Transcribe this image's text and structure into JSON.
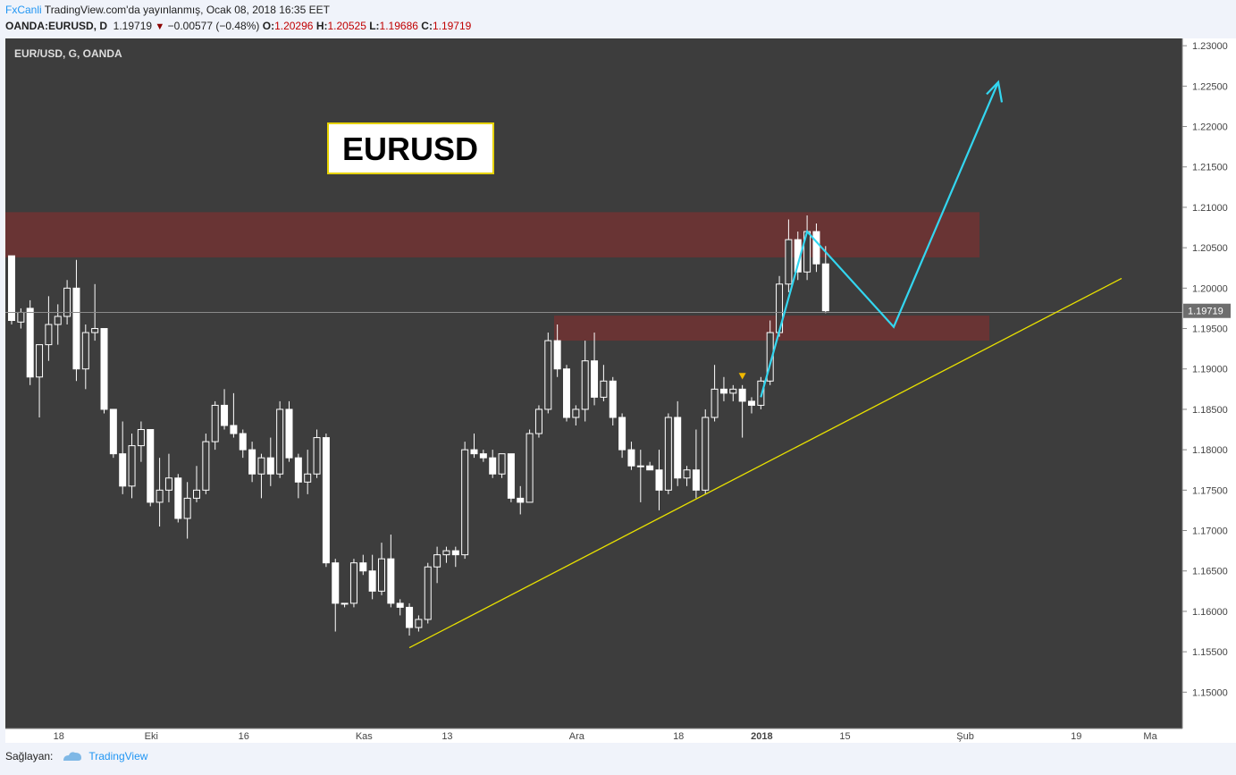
{
  "header": {
    "brand": "FxCanli",
    "published": " TradingView.com'da yayınlanmış, Ocak 08, 2018 16:35 EET",
    "symbol": "OANDA:EURUSD, D",
    "last": "1.19719",
    "change": "−0.00577 (−0.48%)",
    "o_label": "O:",
    "o_val": "1.20296",
    "h_label": "H:",
    "h_val": "1.20525",
    "l_label": "L:",
    "l_val": "1.19686",
    "c_label": "C:",
    "c_val": "1.19719"
  },
  "footer": {
    "provider_label": "Sağlayan:",
    "provider_name": "TradingView"
  },
  "chart_data": {
    "type": "candlestick",
    "title": "EUR/USD, G, OANDA",
    "annotation": "EURUSD",
    "last_price_label": "1.19719",
    "ylim": [
      1.1455,
      1.2309
    ],
    "y_ticks": [
      "1.23000",
      "1.22500",
      "1.22000",
      "1.21500",
      "1.21000",
      "1.20500",
      "1.20000",
      "1.19500",
      "1.19000",
      "1.18500",
      "1.18000",
      "1.17500",
      "1.17000",
      "1.16500",
      "1.16000",
      "1.15500",
      "1.15000"
    ],
    "x_ticks": [
      {
        "label": "18",
        "idx": 5
      },
      {
        "label": "Eki",
        "idx": 15
      },
      {
        "label": "16",
        "idx": 25
      },
      {
        "label": "Kas",
        "idx": 38
      },
      {
        "label": "13",
        "idx": 47
      },
      {
        "label": "Ara",
        "idx": 61
      },
      {
        "label": "18",
        "idx": 72
      },
      {
        "label": "2018",
        "idx": 81
      },
      {
        "label": "15",
        "idx": 90
      },
      {
        "label": "Şub",
        "idx": 103
      },
      {
        "label": "19",
        "idx": 115
      },
      {
        "label": "Ma",
        "idx": 123
      }
    ],
    "candles": [
      [
        1.204,
        1.204,
        1.1955,
        1.196
      ],
      [
        1.1958,
        1.1975,
        1.195,
        1.197
      ],
      [
        1.1975,
        1.1985,
        1.188,
        1.189
      ],
      [
        1.189,
        1.193,
        1.184,
        1.193
      ],
      [
        1.193,
        1.199,
        1.191,
        1.1955
      ],
      [
        1.1955,
        1.198,
        1.193,
        1.1965
      ],
      [
        1.1965,
        1.201,
        1.1955,
        1.2
      ],
      [
        1.2,
        1.2035,
        1.1885,
        1.19
      ],
      [
        1.19,
        1.1955,
        1.1875,
        1.1945
      ],
      [
        1.1945,
        1.2005,
        1.1935,
        1.195
      ],
      [
        1.195,
        1.195,
        1.1845,
        1.185
      ],
      [
        1.185,
        1.185,
        1.179,
        1.1795
      ],
      [
        1.1795,
        1.1835,
        1.1745,
        1.1755
      ],
      [
        1.1755,
        1.182,
        1.174,
        1.1805
      ],
      [
        1.1805,
        1.1835,
        1.1785,
        1.1825
      ],
      [
        1.1825,
        1.1825,
        1.173,
        1.1735
      ],
      [
        1.1735,
        1.179,
        1.1705,
        1.175
      ],
      [
        1.175,
        1.1795,
        1.1735,
        1.1765
      ],
      [
        1.1765,
        1.177,
        1.171,
        1.1715
      ],
      [
        1.1715,
        1.176,
        1.169,
        1.174
      ],
      [
        1.174,
        1.178,
        1.1735,
        1.175
      ],
      [
        1.175,
        1.182,
        1.1745,
        1.181
      ],
      [
        1.181,
        1.186,
        1.18,
        1.1855
      ],
      [
        1.1855,
        1.1875,
        1.1825,
        1.183
      ],
      [
        1.183,
        1.187,
        1.1815,
        1.182
      ],
      [
        1.182,
        1.1825,
        1.179,
        1.18
      ],
      [
        1.18,
        1.181,
        1.176,
        1.177
      ],
      [
        1.177,
        1.1795,
        1.174,
        1.179
      ],
      [
        1.179,
        1.1815,
        1.1755,
        1.177
      ],
      [
        1.177,
        1.186,
        1.1765,
        1.185
      ],
      [
        1.185,
        1.186,
        1.1785,
        1.179
      ],
      [
        1.179,
        1.1795,
        1.174,
        1.176
      ],
      [
        1.176,
        1.18,
        1.1745,
        1.177
      ],
      [
        1.177,
        1.1825,
        1.1765,
        1.1815
      ],
      [
        1.1815,
        1.182,
        1.1655,
        1.166
      ],
      [
        1.166,
        1.1665,
        1.1575,
        1.161
      ],
      [
        1.161,
        1.161,
        1.1605,
        1.161
      ],
      [
        1.161,
        1.1665,
        1.1605,
        1.166
      ],
      [
        1.166,
        1.167,
        1.1645,
        1.165
      ],
      [
        1.165,
        1.167,
        1.1615,
        1.1625
      ],
      [
        1.1625,
        1.1685,
        1.162,
        1.1665
      ],
      [
        1.1665,
        1.1695,
        1.1605,
        1.161
      ],
      [
        1.161,
        1.1615,
        1.1595,
        1.1605
      ],
      [
        1.1605,
        1.161,
        1.157,
        1.158
      ],
      [
        1.158,
        1.1595,
        1.1575,
        1.159
      ],
      [
        1.159,
        1.166,
        1.1585,
        1.1655
      ],
      [
        1.1655,
        1.168,
        1.1635,
        1.167
      ],
      [
        1.167,
        1.168,
        1.166,
        1.1675
      ],
      [
        1.1675,
        1.168,
        1.1655,
        1.167
      ],
      [
        1.167,
        1.181,
        1.1665,
        1.18
      ],
      [
        1.18,
        1.182,
        1.179,
        1.1795
      ],
      [
        1.1795,
        1.18,
        1.1785,
        1.179
      ],
      [
        1.179,
        1.18,
        1.1765,
        1.177
      ],
      [
        1.177,
        1.1795,
        1.1765,
        1.1795
      ],
      [
        1.1795,
        1.1795,
        1.1735,
        1.174
      ],
      [
        1.174,
        1.1755,
        1.172,
        1.1735
      ],
      [
        1.1735,
        1.1825,
        1.1735,
        1.182
      ],
      [
        1.182,
        1.1855,
        1.1815,
        1.185
      ],
      [
        1.185,
        1.1945,
        1.1845,
        1.1935
      ],
      [
        1.1935,
        1.1955,
        1.189,
        1.19
      ],
      [
        1.19,
        1.1905,
        1.1835,
        1.184
      ],
      [
        1.184,
        1.1855,
        1.183,
        1.185
      ],
      [
        1.185,
        1.1935,
        1.1835,
        1.191
      ],
      [
        1.191,
        1.1945,
        1.1855,
        1.1865
      ],
      [
        1.1865,
        1.1905,
        1.186,
        1.1885
      ],
      [
        1.1885,
        1.189,
        1.183,
        1.184
      ],
      [
        1.184,
        1.1845,
        1.179,
        1.18
      ],
      [
        1.18,
        1.181,
        1.1775,
        1.178
      ],
      [
        1.178,
        1.18,
        1.1735,
        1.178
      ],
      [
        1.178,
        1.1785,
        1.1775,
        1.1775
      ],
      [
        1.1775,
        1.18,
        1.1725,
        1.175
      ],
      [
        1.175,
        1.1845,
        1.1745,
        1.184
      ],
      [
        1.184,
        1.186,
        1.1755,
        1.1765
      ],
      [
        1.1765,
        1.178,
        1.1755,
        1.1775
      ],
      [
        1.1775,
        1.1825,
        1.174,
        1.175
      ],
      [
        1.175,
        1.185,
        1.1745,
        1.184
      ],
      [
        1.184,
        1.1905,
        1.1835,
        1.1875
      ],
      [
        1.1875,
        1.189,
        1.186,
        1.187
      ],
      [
        1.187,
        1.188,
        1.186,
        1.1875
      ],
      [
        1.1875,
        1.188,
        1.1815,
        1.186
      ],
      [
        1.186,
        1.1865,
        1.1845,
        1.1855
      ],
      [
        1.1855,
        1.189,
        1.185,
        1.1885
      ],
      [
        1.1885,
        1.196,
        1.188,
        1.1945
      ],
      [
        1.1945,
        1.2015,
        1.194,
        1.2005
      ],
      [
        1.2005,
        1.2085,
        1.1995,
        1.206
      ],
      [
        1.206,
        1.207,
        1.201,
        1.202
      ],
      [
        1.202,
        1.209,
        1.201,
        1.207
      ],
      [
        1.207,
        1.208,
        1.202,
        1.203
      ],
      [
        1.203,
        1.2052,
        1.1969,
        1.1972
      ]
    ]
  }
}
